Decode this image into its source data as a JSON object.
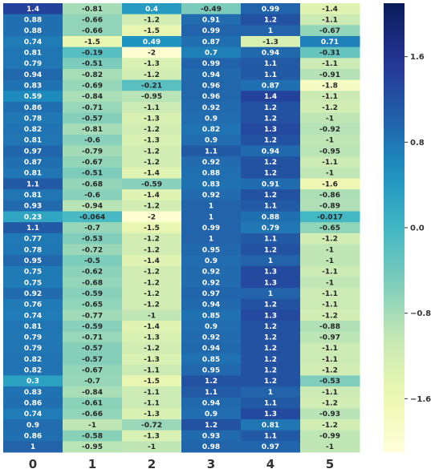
{
  "chart_data": {
    "type": "heatmap",
    "title": "",
    "xlabel": "",
    "ylabel": "",
    "columns": [
      "0",
      "1",
      "2",
      "3",
      "4",
      "5"
    ],
    "colormap": "YlGnBu",
    "vmin": -2.1,
    "vmax": 2.1,
    "colorbar_ticks": [
      1.6,
      0.8,
      0.0,
      -0.8,
      -1.6
    ],
    "colorbar_tick_labels": [
      "1.6",
      "0.8",
      "0.0",
      "−0.8",
      "−1.6"
    ],
    "grid": false,
    "legend": "colorbar-right",
    "values": [
      [
        1.4,
        -0.81,
        0.4,
        -0.49,
        0.99,
        -1.4
      ],
      [
        0.88,
        -0.66,
        -1.2,
        0.91,
        1.2,
        -1.1
      ],
      [
        0.88,
        -0.66,
        -1.5,
        0.99,
        1,
        -0.67
      ],
      [
        0.74,
        -1.5,
        0.49,
        0.87,
        -1.3,
        0.71
      ],
      [
        0.81,
        -0.19,
        -2,
        0.7,
        0.94,
        -0.31
      ],
      [
        0.79,
        -0.51,
        -1.3,
        0.99,
        1.1,
        -1.1
      ],
      [
        0.94,
        -0.82,
        -1.2,
        0.94,
        1.1,
        -0.91
      ],
      [
        0.83,
        -0.69,
        -0.21,
        0.96,
        0.87,
        -1.8
      ],
      [
        0.59,
        -0.84,
        -0.95,
        0.96,
        1.4,
        -1.1
      ],
      [
        0.86,
        -0.71,
        -1.1,
        0.92,
        1.2,
        -1.2
      ],
      [
        0.78,
        -0.57,
        -1.3,
        0.9,
        1.2,
        -1
      ],
      [
        0.82,
        -0.81,
        -1.2,
        0.82,
        1.3,
        -0.92
      ],
      [
        0.81,
        -0.6,
        -1.3,
        0.9,
        1.2,
        -1
      ],
      [
        0.97,
        -0.79,
        -1.2,
        1.1,
        0.94,
        -0.95
      ],
      [
        0.87,
        -0.67,
        -1.2,
        0.92,
        1.2,
        -1.1
      ],
      [
        0.81,
        -0.51,
        -1.4,
        0.88,
        1.2,
        -1
      ],
      [
        1.1,
        -0.68,
        -0.59,
        0.83,
        0.91,
        -1.6
      ],
      [
        0.81,
        -0.6,
        -1.4,
        0.92,
        1.2,
        -0.86
      ],
      [
        0.93,
        -0.94,
        -1.2,
        1,
        1.1,
        -0.89
      ],
      [
        0.23,
        -0.064,
        -2,
        1,
        0.88,
        -0.017
      ],
      [
        1.1,
        -0.7,
        -1.5,
        0.99,
        0.79,
        -0.65
      ],
      [
        0.77,
        -0.53,
        -1.2,
        1,
        1.1,
        -1.2
      ],
      [
        0.78,
        -0.72,
        -1.2,
        0.95,
        1.2,
        -1
      ],
      [
        0.95,
        -0.5,
        -1.4,
        0.9,
        1,
        -1
      ],
      [
        0.75,
        -0.62,
        -1.2,
        0.92,
        1.3,
        -1.1
      ],
      [
        0.75,
        -0.68,
        -1.2,
        0.92,
        1.3,
        -1
      ],
      [
        0.92,
        -0.59,
        -1.2,
        0.97,
        1,
        -1.1
      ],
      [
        0.76,
        -0.65,
        -1.2,
        0.94,
        1.2,
        -1.1
      ],
      [
        0.74,
        -0.77,
        -1,
        0.85,
        1.3,
        -1.2
      ],
      [
        0.81,
        -0.59,
        -1.4,
        0.9,
        1.2,
        -0.88
      ],
      [
        0.79,
        -0.71,
        -1.3,
        0.92,
        1.2,
        -0.97
      ],
      [
        0.79,
        -0.57,
        -1.2,
        0.94,
        1.2,
        -1.1
      ],
      [
        0.82,
        -0.57,
        -1.3,
        0.85,
        1.2,
        -1.1
      ],
      [
        0.82,
        -0.67,
        -1.1,
        0.95,
        1.2,
        -1.2
      ],
      [
        0.3,
        -0.7,
        -1.5,
        1.2,
        1.2,
        -0.53
      ],
      [
        0.83,
        -0.84,
        -1.1,
        1.1,
        1,
        -1.1
      ],
      [
        0.86,
        -0.61,
        -1.1,
        0.94,
        1.1,
        -1.2
      ],
      [
        0.74,
        -0.66,
        -1.3,
        0.9,
        1.3,
        -0.93
      ],
      [
        0.9,
        -1,
        -0.72,
        1.2,
        0.81,
        -1.2
      ],
      [
        0.86,
        -0.58,
        -1.3,
        0.93,
        1.1,
        -0.99
      ],
      [
        1,
        -0.95,
        -1,
        0.98,
        0.97,
        -1
      ]
    ]
  }
}
